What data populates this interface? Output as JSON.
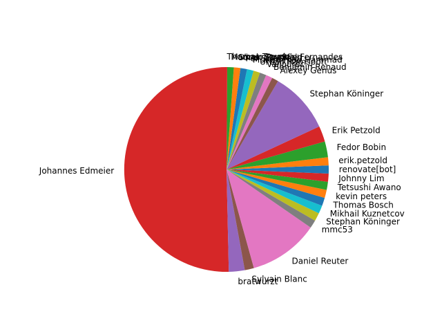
{
  "chart_data": {
    "type": "pie",
    "title": "",
    "start_angle": 90,
    "counterclock": true,
    "slices": [
      {
        "label": "Johannes Edmeier",
        "value": 291.0,
        "color": "#d62728"
      },
      {
        "label": "bratwurzt",
        "value": 14.5,
        "color": "#9467bd"
      },
      {
        "label": "Sylvain Blanc",
        "value": 8.4,
        "color": "#8c564b"
      },
      {
        "label": "Daniel Reuter",
        "value": 64.0,
        "color": "#e377c2"
      },
      {
        "label": "mmc53",
        "value": 7.4,
        "color": "#7f7f7f"
      },
      {
        "label": "Stephan Köninger",
        "value": 7.4,
        "color": "#bcbd22"
      },
      {
        "label": "Mikhail Kuznetcov",
        "value": 7.4,
        "color": "#17becf"
      },
      {
        "label": "Thomas Bosch",
        "value": 7.4,
        "color": "#1f77b4"
      },
      {
        "label": "kevin peters",
        "value": 7.4,
        "color": "#ff7f0e"
      },
      {
        "label": "Tetsushi Awano",
        "value": 7.4,
        "color": "#2ca02c"
      },
      {
        "label": "Johnny Lim",
        "value": 7.4,
        "color": "#d62728"
      },
      {
        "label": "renovate[bot]",
        "value": 7.4,
        "color": "#1f77b4"
      },
      {
        "label": "erik.petzold",
        "value": 7.4,
        "color": "#ff7f0e"
      },
      {
        "label": "Fedor Bobin",
        "value": 14.4,
        "color": "#2ca02c"
      },
      {
        "label": "Erik Petzold",
        "value": 14.4,
        "color": "#d62728"
      },
      {
        "label": "Stephan Köninger",
        "value": 56.0,
        "color": "#9467bd"
      },
      {
        "label": "Alexey Genus",
        "value": 6.0,
        "color": "#8c564b"
      },
      {
        "label": "Benjamin Renaud",
        "value": 6.0,
        "color": "#e377c2"
      },
      {
        "label": "Vallourec",
        "value": 6.0,
        "color": "#7f7f7f"
      },
      {
        "label": "Urban Ramspott",
        "value": 6.0,
        "color": "#bcbd22"
      },
      {
        "label": "Muhammad Hammad",
        "value": 6.0,
        "color": "#17becf"
      },
      {
        "label": "Per Straßfeld",
        "value": 6.0,
        "color": "#1f77b4"
      },
      {
        "label": "Sören Straßfeld",
        "value": 6.0,
        "color": "#ff7f0e"
      },
      {
        "label": "Marcelo Romulo Fernandes",
        "value": 6.0,
        "color": "#2ca02c"
      },
      {
        "label": "Thomas Traude",
        "value": 0.6,
        "color": "#d62728"
      }
    ]
  }
}
